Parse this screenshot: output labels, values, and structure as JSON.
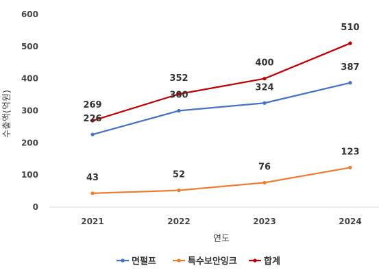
{
  "chart_data": {
    "type": "line",
    "title": "",
    "xlabel": "연도",
    "ylabel": "수출액(억원)",
    "categories": [
      "2021",
      "2022",
      "2023",
      "2024"
    ],
    "ylim": [
      0,
      600
    ],
    "yticks": [
      0,
      100,
      200,
      300,
      400,
      500,
      600
    ],
    "grid": false,
    "legend_position": "bottom",
    "series": [
      {
        "name": "면펄프",
        "values": [
          226,
          300,
          324,
          387
        ],
        "color": "#4472C4"
      },
      {
        "name": "특수보안잉크",
        "values": [
          43,
          52,
          76,
          123
        ],
        "color": "#ED7D31"
      },
      {
        "name": "합계",
        "values": [
          269,
          352,
          400,
          510
        ],
        "color": "#C00000"
      }
    ]
  }
}
